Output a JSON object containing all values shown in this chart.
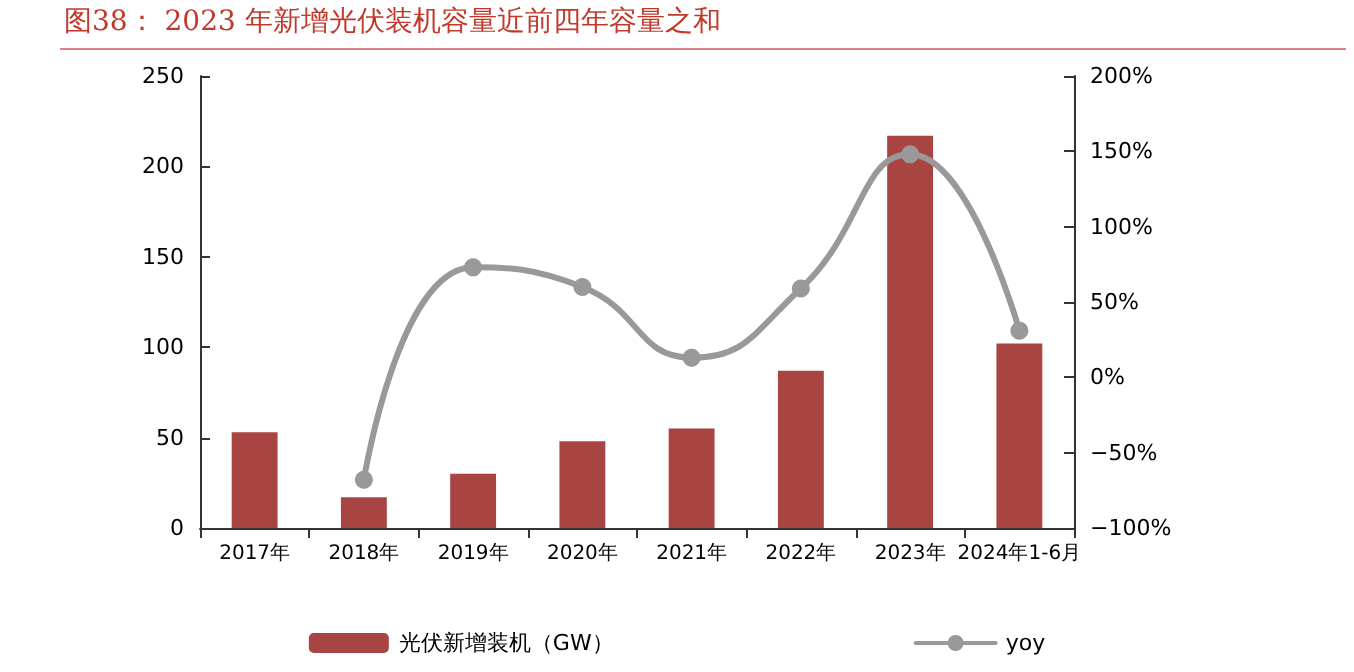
{
  "chart_data": {
    "type": "bar",
    "title": "图38： 2023 年新增光伏装机容量近前四年容量之和",
    "categories": [
      "2017年",
      "2018年",
      "2019年",
      "2020年",
      "2021年",
      "2022年",
      "2023年",
      "2024年1-6月"
    ],
    "series": [
      {
        "name": "光伏新增装机（GW）",
        "color": "#a84442",
        "values": [
          53,
          17,
          30,
          48,
          55,
          87,
          217,
          102
        ]
      },
      {
        "name": "yoy",
        "type": "line",
        "axis": "y2",
        "color": "#999999",
        "values": [
          null,
          -68,
          73,
          60,
          13,
          59,
          148,
          31
        ]
      }
    ],
    "ylim": [
      0,
      250
    ],
    "yticks": [
      0,
      50,
      100,
      150,
      200,
      250
    ],
    "y2lim": [
      -100,
      200
    ],
    "y2ticks": [
      {
        "value": -100,
        "label": "−100%"
      },
      {
        "value": -50,
        "label": "−50%"
      },
      {
        "value": 0,
        "label": "0%"
      },
      {
        "value": 50,
        "label": "50%"
      },
      {
        "value": 100,
        "label": "100%"
      },
      {
        "value": 150,
        "label": "150%"
      },
      {
        "value": 200,
        "label": "200%"
      }
    ],
    "grid": false,
    "legend": "bottom",
    "marker": "circle",
    "line_style": "solid"
  }
}
